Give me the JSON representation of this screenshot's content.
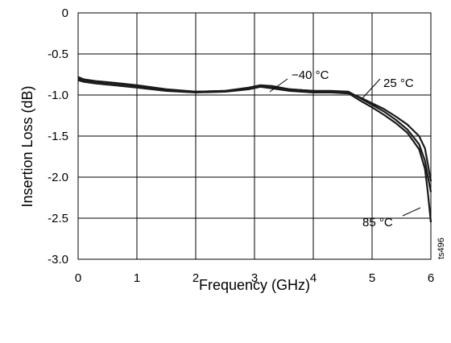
{
  "chart_data": {
    "type": "line",
    "title": "",
    "xlabel": "Frequency (GHz)",
    "ylabel": "Insertion Loss (dB)",
    "xlim": [
      0,
      6
    ],
    "ylim": [
      -3.0,
      0
    ],
    "xticks": [
      0,
      1,
      2,
      3,
      4,
      5,
      6
    ],
    "xtick_labels": [
      "0",
      "1",
      "2",
      "3",
      "4",
      "5",
      "6"
    ],
    "yticks": [
      0,
      -0.5,
      -1.0,
      -1.5,
      -2.0,
      -2.5,
      -3.0
    ],
    "ytick_labels": [
      "0",
      "-0.5",
      "-1.0",
      "-1.5",
      "-2.0",
      "-2.5",
      "-3.0"
    ],
    "grid": true,
    "legend": "none",
    "line_color": "#1a1a1a",
    "series": [
      {
        "name": "−40 °C",
        "x": [
          0,
          0.1,
          0.3,
          0.6,
          1.0,
          1.5,
          2.0,
          2.5,
          2.9,
          3.1,
          3.3,
          3.6,
          4.0,
          4.3,
          4.6,
          4.8,
          5.0,
          5.2,
          5.4,
          5.6,
          5.8,
          5.9,
          5.95,
          6.0
        ],
        "y": [
          -0.78,
          -0.81,
          -0.83,
          -0.85,
          -0.88,
          -0.93,
          -0.96,
          -0.95,
          -0.91,
          -0.88,
          -0.89,
          -0.93,
          -0.95,
          -0.95,
          -0.96,
          -1.04,
          -1.12,
          -1.2,
          -1.3,
          -1.42,
          -1.6,
          -1.8,
          -2.0,
          -2.18
        ]
      },
      {
        "name": "25 °C",
        "x": [
          0,
          0.1,
          0.3,
          0.6,
          1.0,
          1.5,
          2.0,
          2.5,
          2.9,
          3.1,
          3.3,
          3.6,
          4.0,
          4.3,
          4.6,
          4.8,
          5.0,
          5.2,
          5.4,
          5.6,
          5.8,
          5.9,
          5.95,
          6.0
        ],
        "y": [
          -0.8,
          -0.82,
          -0.84,
          -0.86,
          -0.89,
          -0.94,
          -0.96,
          -0.95,
          -0.92,
          -0.89,
          -0.9,
          -0.93,
          -0.95,
          -0.96,
          -0.97,
          -1.03,
          -1.1,
          -1.17,
          -1.26,
          -1.36,
          -1.5,
          -1.65,
          -1.85,
          -2.05
        ]
      },
      {
        "name": "85 °C",
        "x": [
          0,
          0.1,
          0.3,
          0.6,
          1.0,
          1.5,
          2.0,
          2.5,
          2.9,
          3.1,
          3.3,
          3.6,
          4.0,
          4.3,
          4.6,
          4.8,
          5.0,
          5.2,
          5.4,
          5.6,
          5.8,
          5.9,
          5.95,
          6.0
        ],
        "y": [
          -0.82,
          -0.84,
          -0.86,
          -0.88,
          -0.91,
          -0.95,
          -0.97,
          -0.96,
          -0.93,
          -0.9,
          -0.92,
          -0.95,
          -0.97,
          -0.97,
          -0.98,
          -1.07,
          -1.15,
          -1.24,
          -1.34,
          -1.46,
          -1.66,
          -1.9,
          -2.2,
          -2.55
        ]
      }
    ],
    "annotations": [
      "−40 °C",
      "25 °C",
      "85 °C"
    ],
    "figure_code": "ts496"
  }
}
